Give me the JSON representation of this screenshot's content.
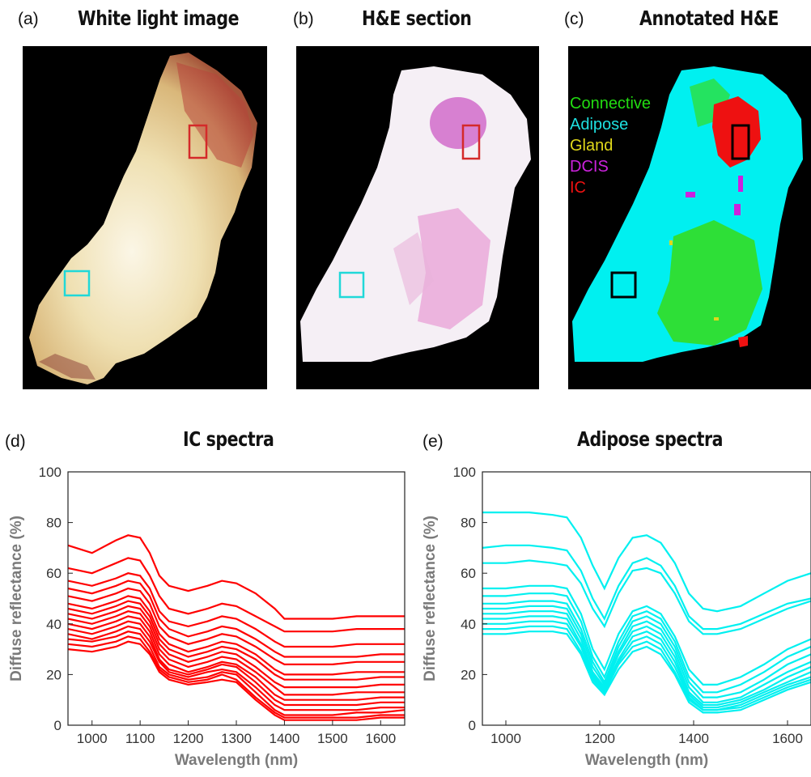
{
  "panels": {
    "a": {
      "letter": "(a)",
      "title": "White light image"
    },
    "b": {
      "letter": "(b)",
      "title": "H&E section"
    },
    "c": {
      "letter": "(c)",
      "title": "Annotated H&E",
      "legend": [
        {
          "label": "Connective",
          "color": "#22dd11"
        },
        {
          "label": "Adipose",
          "color": "#1ee0e0"
        },
        {
          "label": "Gland",
          "color": "#e0d81a"
        },
        {
          "label": "DCIS",
          "color": "#cc22dd"
        },
        {
          "label": "IC",
          "color": "#ee1111"
        }
      ]
    },
    "d": {
      "letter": "(d)",
      "title": "IC spectra"
    },
    "e": {
      "letter": "(e)",
      "title": "Adipose spectra"
    }
  },
  "colors": {
    "ic": "#ff0000",
    "adipose": "#00f0f0",
    "roi_ic": "#d42a2a",
    "roi_adipose": "#20d8d8"
  },
  "chart_data": [
    {
      "type": "line",
      "title": "IC spectra",
      "xlabel": "Wavelength (nm)",
      "ylabel": "Diffuse reflectance (%)",
      "xlim": [
        950,
        1650
      ],
      "ylim": [
        0,
        100
      ],
      "xticks": [
        1000,
        1100,
        1200,
        1300,
        1400,
        1500,
        1600
      ],
      "yticks": [
        0,
        20,
        40,
        60,
        80,
        100
      ],
      "color": "#ff0000",
      "x": [
        950,
        1000,
        1050,
        1075,
        1100,
        1120,
        1140,
        1160,
        1200,
        1240,
        1270,
        1300,
        1340,
        1380,
        1400,
        1450,
        1500,
        1550,
        1600,
        1650
      ],
      "series": [
        {
          "values": [
            71,
            68,
            73,
            75,
            74,
            68,
            59,
            55,
            53,
            55,
            57,
            56,
            52,
            46,
            42,
            42,
            42,
            43,
            43,
            43
          ]
        },
        {
          "values": [
            62,
            60,
            64,
            66,
            65,
            59,
            51,
            46,
            44,
            46,
            48,
            47,
            43,
            39,
            37,
            37,
            37,
            38,
            38,
            38
          ]
        },
        {
          "values": [
            57,
            55,
            58,
            60,
            59,
            54,
            45,
            41,
            39,
            41,
            43,
            42,
            38,
            33,
            31,
            31,
            31,
            32,
            32,
            32
          ]
        },
        {
          "values": [
            54,
            52,
            55,
            57,
            56,
            51,
            42,
            38,
            35,
            37,
            39,
            38,
            34,
            29,
            27,
            27,
            27,
            27,
            28,
            28
          ]
        },
        {
          "values": [
            51,
            49,
            52,
            54,
            53,
            48,
            39,
            35,
            32,
            34,
            36,
            35,
            31,
            26,
            24,
            24,
            24,
            25,
            25,
            25
          ]
        },
        {
          "values": [
            48,
            46,
            49,
            51,
            50,
            45,
            36,
            32,
            29,
            31,
            33,
            32,
            28,
            22,
            20,
            20,
            20,
            21,
            21,
            21
          ]
        },
        {
          "values": [
            46,
            44,
            47,
            49,
            48,
            43,
            34,
            30,
            27,
            29,
            31,
            30,
            26,
            20,
            18,
            18,
            18,
            18,
            19,
            19
          ]
        },
        {
          "values": [
            44,
            42,
            45,
            47,
            46,
            41,
            32,
            28,
            25,
            27,
            29,
            28,
            23,
            17,
            15,
            15,
            15,
            15,
            16,
            16
          ]
        },
        {
          "values": [
            42,
            40,
            43,
            45,
            44,
            39,
            30,
            26,
            23,
            25,
            27,
            26,
            21,
            15,
            12,
            12,
            12,
            13,
            13,
            13
          ]
        },
        {
          "values": [
            40,
            38,
            41,
            43,
            42,
            37,
            28,
            24,
            21,
            23,
            25,
            24,
            19,
            12,
            10,
            10,
            10,
            10,
            11,
            11
          ]
        },
        {
          "values": [
            38,
            36,
            39,
            41,
            40,
            35,
            26,
            22,
            20,
            22,
            24,
            23,
            17,
            10,
            8,
            8,
            8,
            8,
            9,
            9
          ]
        },
        {
          "values": [
            36,
            34,
            37,
            39,
            38,
            33,
            25,
            21,
            19,
            21,
            22,
            21,
            15,
            8,
            6,
            6,
            6,
            6,
            7,
            7
          ]
        },
        {
          "values": [
            34,
            33,
            35,
            37,
            36,
            31,
            23,
            20,
            18,
            19,
            21,
            20,
            13,
            6,
            4,
            4,
            4,
            5,
            5,
            6
          ]
        },
        {
          "values": [
            32,
            31,
            33,
            35,
            34,
            29,
            22,
            19,
            17,
            18,
            20,
            18,
            11,
            5,
            3,
            3,
            3,
            3,
            4,
            4
          ]
        },
        {
          "values": [
            30,
            29,
            31,
            33,
            32,
            28,
            21,
            18,
            16,
            17,
            18,
            17,
            10,
            4,
            2,
            2,
            2,
            2,
            3,
            3
          ]
        }
      ]
    },
    {
      "type": "line",
      "title": "Adipose spectra",
      "xlabel": "Wavelength (nm)",
      "ylabel": "Diffuse reflectance (%)",
      "xlim": [
        950,
        1650
      ],
      "ylim": [
        0,
        100
      ],
      "xticks": [
        1000,
        1200,
        1400,
        1600
      ],
      "yticks": [
        0,
        20,
        40,
        60,
        80,
        100
      ],
      "color": "#00f0f0",
      "x": [
        950,
        1000,
        1050,
        1100,
        1130,
        1160,
        1185,
        1210,
        1240,
        1270,
        1300,
        1330,
        1360,
        1390,
        1420,
        1450,
        1500,
        1550,
        1600,
        1650
      ],
      "series": [
        {
          "values": [
            84,
            84,
            84,
            83,
            82,
            74,
            63,
            54,
            66,
            74,
            75,
            72,
            64,
            52,
            46,
            45,
            47,
            52,
            57,
            60
          ]
        },
        {
          "values": [
            70,
            71,
            71,
            70,
            69,
            61,
            50,
            42,
            55,
            64,
            66,
            63,
            55,
            43,
            38,
            38,
            40,
            44,
            48,
            50
          ]
        },
        {
          "values": [
            64,
            64,
            65,
            64,
            63,
            56,
            46,
            39,
            52,
            61,
            62,
            60,
            52,
            41,
            36,
            36,
            38,
            42,
            46,
            49
          ]
        },
        {
          "values": [
            54,
            54,
            55,
            55,
            54,
            44,
            30,
            22,
            36,
            45,
            47,
            44,
            35,
            22,
            16,
            16,
            19,
            24,
            30,
            34
          ]
        },
        {
          "values": [
            51,
            51,
            52,
            52,
            51,
            41,
            27,
            19,
            33,
            43,
            45,
            42,
            33,
            19,
            13,
            13,
            16,
            21,
            27,
            31
          ]
        },
        {
          "values": [
            48,
            48,
            49,
            49,
            48,
            38,
            25,
            17,
            31,
            41,
            43,
            40,
            31,
            17,
            11,
            11,
            13,
            18,
            24,
            28
          ]
        },
        {
          "values": [
            46,
            46,
            47,
            47,
            46,
            36,
            23,
            16,
            29,
            39,
            41,
            38,
            29,
            15,
            9,
            9,
            11,
            16,
            21,
            25
          ]
        },
        {
          "values": [
            44,
            44,
            45,
            45,
            44,
            34,
            21,
            15,
            28,
            37,
            39,
            36,
            27,
            13,
            8,
            8,
            10,
            14,
            19,
            23
          ]
        },
        {
          "values": [
            42,
            42,
            43,
            43,
            42,
            32,
            20,
            14,
            26,
            35,
            37,
            34,
            25,
            12,
            7,
            7,
            9,
            13,
            17,
            21
          ]
        },
        {
          "values": [
            40,
            40,
            41,
            41,
            40,
            31,
            19,
            13,
            25,
            33,
            35,
            32,
            23,
            11,
            6,
            6,
            8,
            12,
            16,
            19
          ]
        },
        {
          "values": [
            38,
            38,
            39,
            39,
            38,
            29,
            18,
            13,
            24,
            31,
            33,
            30,
            21,
            10,
            6,
            6,
            7,
            11,
            15,
            18
          ]
        },
        {
          "values": [
            36,
            36,
            37,
            37,
            36,
            28,
            17,
            12,
            22,
            29,
            31,
            28,
            20,
            9,
            5,
            5,
            6,
            10,
            14,
            17
          ]
        }
      ]
    }
  ]
}
